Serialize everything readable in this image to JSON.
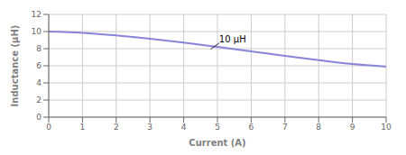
{
  "chart_data": {
    "type": "line",
    "xlabel": "Current (A)",
    "ylabel": "Inductance (μH)",
    "x": [
      0,
      1,
      2,
      3,
      4,
      5,
      6,
      7,
      8,
      9,
      10
    ],
    "values": [
      10.0,
      9.85,
      9.55,
      9.15,
      8.7,
      8.2,
      7.68,
      7.15,
      6.65,
      6.2,
      5.9
    ],
    "xlim": [
      0,
      10
    ],
    "ylim": [
      0,
      12
    ],
    "xticks": [
      0,
      1,
      2,
      3,
      4,
      5,
      6,
      7,
      8,
      9,
      10
    ],
    "yticks": [
      0,
      2,
      4,
      6,
      8,
      10,
      12
    ],
    "grid": true,
    "annotations": [
      {
        "text": "10 μH",
        "x": 4.8,
        "y": 7.95,
        "text_x": 5.05,
        "text_y": 8.65
      }
    ]
  }
}
